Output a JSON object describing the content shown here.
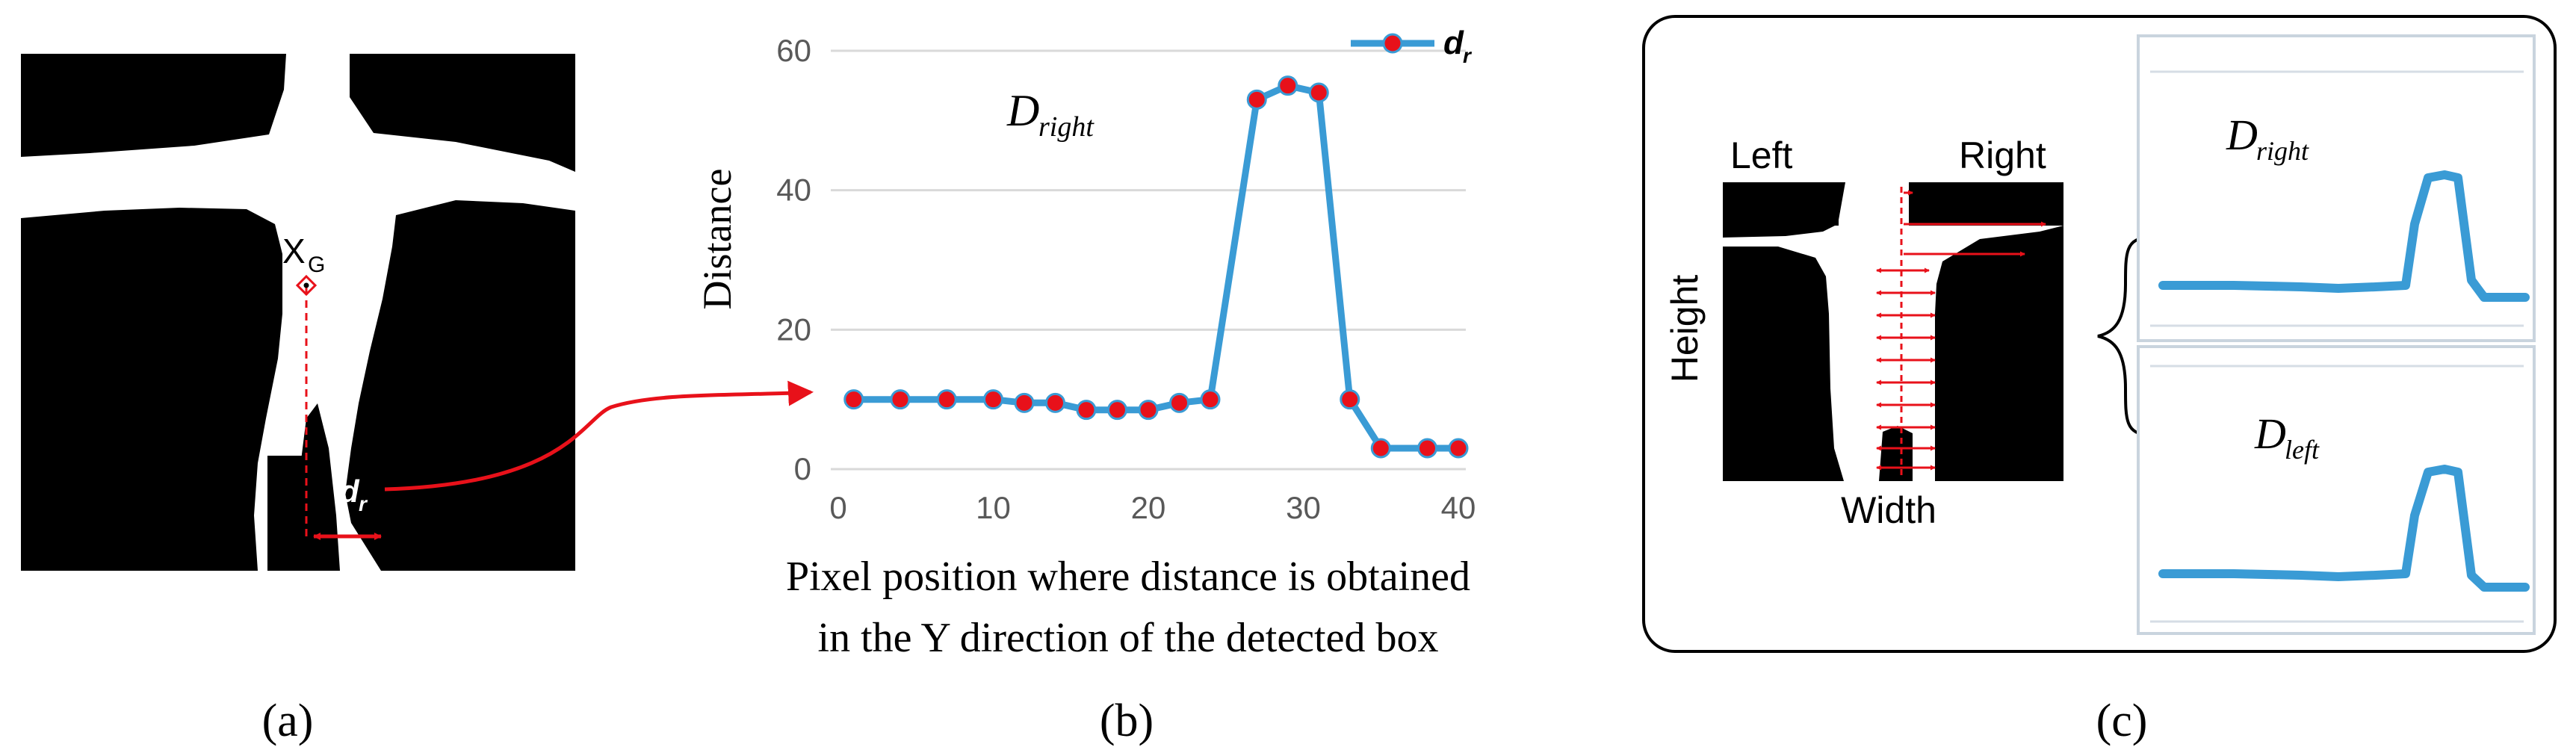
{
  "panel_a": {
    "centroid_label": "X",
    "centroid_subscript": "G",
    "distance_label": "d",
    "distance_subscript": "r",
    "caption": "(a)"
  },
  "panel_b": {
    "caption": "(b)",
    "xlabel_line1": "Pixel position where distance is obtained",
    "xlabel_line2": "in the Y direction of the detected box",
    "in_chart_label": "D",
    "in_chart_label_sub": "right"
  },
  "panel_c": {
    "caption": "(c)",
    "label_left": "Left",
    "label_right": "Right",
    "label_height": "Height",
    "label_width": "Width",
    "plot1_label": "D",
    "plot1_label_sub": "right",
    "plot2_label": "D",
    "plot2_label_sub": "left",
    "series_color": "#3a9bd5",
    "arrow_color": "#e8111a"
  },
  "chart_data": {
    "type": "line",
    "title": "",
    "xlabel": "Pixel position where distance is obtained in the Y direction of the detected box",
    "ylabel": "Distance",
    "xlim": [
      0,
      40
    ],
    "ylim": [
      0,
      60
    ],
    "xticks": [
      0,
      10,
      20,
      30,
      40
    ],
    "yticks": [
      0,
      20,
      40,
      60
    ],
    "grid": "horizontal",
    "legend": "top-right",
    "series": [
      {
        "name": "d",
        "name_sub": "r",
        "line_color": "#3a9bd5",
        "marker_color": "#e8111a",
        "x": [
          1,
          4,
          7,
          10,
          12,
          14,
          16,
          18,
          20,
          22,
          24,
          27,
          29,
          31,
          33,
          35,
          38,
          40
        ],
        "y": [
          10,
          10,
          10,
          10,
          9.5,
          9.5,
          8.5,
          8.5,
          8.5,
          9.5,
          10,
          53,
          55,
          54,
          10,
          3,
          3,
          3
        ]
      }
    ]
  }
}
